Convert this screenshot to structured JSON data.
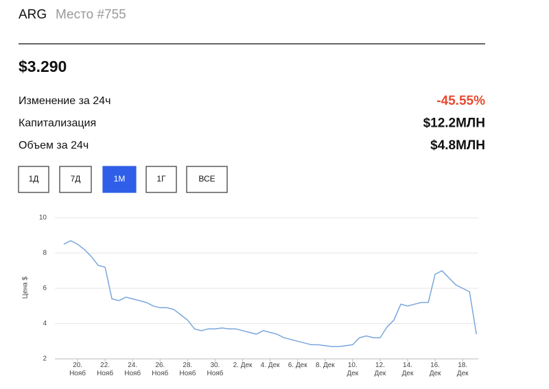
{
  "header": {
    "ticker": "ARG",
    "rank": "Место #755"
  },
  "price": "$3.290",
  "stats": [
    {
      "label": "Изменение за 24ч",
      "value": "-45.55%",
      "color": "#e8492f"
    },
    {
      "label": "Капитализация",
      "value": "$12.2МЛН",
      "color": "#111111"
    },
    {
      "label": "Объем за 24ч",
      "value": "$4.8МЛН",
      "color": "#111111"
    }
  ],
  "buttons": [
    {
      "label": "1Д",
      "selected": false
    },
    {
      "label": "7Д",
      "selected": false
    },
    {
      "label": "1М",
      "selected": true
    },
    {
      "label": "1Г",
      "selected": false
    },
    {
      "label": "ВСЕ",
      "selected": false
    }
  ],
  "chart_data": {
    "type": "line",
    "ylabel": "Цена $",
    "color": "#7aa6dc",
    "grid": true,
    "ylim": [
      2,
      10
    ],
    "yticks": [
      2,
      4,
      6,
      8,
      10
    ],
    "categories": [
      null,
      null,
      "20.\nНояб",
      null,
      null,
      null,
      "22.\nНояб",
      null,
      null,
      null,
      "24.\nНояб",
      null,
      null,
      null,
      "26.\nНояб",
      null,
      null,
      null,
      "28.\nНояб",
      null,
      null,
      null,
      "30.\nНояб",
      null,
      null,
      null,
      "2. Дек",
      null,
      null,
      null,
      "4. Дек",
      null,
      null,
      null,
      "6. Дек",
      null,
      null,
      null,
      "8. Дек",
      null,
      null,
      null,
      "10.\nДек",
      null,
      null,
      null,
      "12.\nДек",
      null,
      null,
      null,
      "14.\nДек",
      null,
      null,
      null,
      "16.\nДек",
      null,
      null,
      null,
      "18.\nДек",
      null,
      null
    ],
    "values": [
      8.5,
      8.7,
      8.5,
      8.2,
      7.8,
      7.3,
      7.2,
      5.4,
      5.3,
      5.5,
      5.4,
      5.3,
      5.2,
      5.0,
      4.9,
      4.9,
      4.8,
      4.5,
      4.2,
      3.7,
      3.6,
      3.7,
      3.7,
      3.75,
      3.7,
      3.7,
      3.6,
      3.5,
      3.4,
      3.6,
      3.5,
      3.4,
      3.2,
      3.1,
      3.0,
      2.9,
      2.8,
      2.8,
      2.75,
      2.7,
      2.7,
      2.75,
      2.8,
      3.2,
      3.3,
      3.2,
      3.2,
      3.8,
      4.2,
      5.1,
      5.0,
      5.1,
      5.2,
      5.2,
      6.8,
      7.0,
      6.6,
      6.2,
      6.0,
      5.8,
      3.4
    ]
  }
}
